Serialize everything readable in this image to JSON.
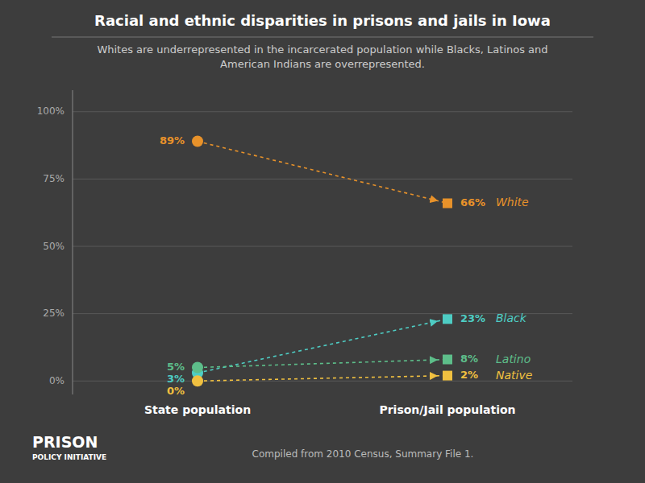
{
  "chart_data": {
    "type": "line",
    "title": "Racial and ethnic disparities in prisons and jails in Iowa",
    "subtitle": "Whites are underrepresented in the incarcerated population while Blacks, Latinos and\nAmerican Indians are overrepresented.",
    "categories": [
      "State population",
      "Prison/Jail population"
    ],
    "series": [
      {
        "name": "White",
        "color": "#e8922a",
        "values": [
          89,
          66
        ],
        "value_labels": [
          "89%",
          "66%"
        ]
      },
      {
        "name": "Black",
        "color": "#4ecdc4",
        "values": [
          3,
          23
        ],
        "value_labels": [
          "3%",
          "23%"
        ]
      },
      {
        "name": "Latino",
        "color": "#5dbe8a",
        "values": [
          5,
          8
        ],
        "value_labels": [
          "5%",
          "8%"
        ]
      },
      {
        "name": "Native",
        "color": "#f0c040",
        "values": [
          0,
          2
        ],
        "value_labels": [
          "0%",
          "2%"
        ]
      }
    ],
    "ylim": [
      -5,
      108
    ],
    "yticks": [
      {
        "value": 0,
        "label": "0%"
      },
      {
        "value": 25,
        "label": "25%"
      },
      {
        "value": 50,
        "label": "50%"
      },
      {
        "value": 75,
        "label": "75%"
      },
      {
        "value": 100,
        "label": "100%"
      }
    ],
    "grid": true,
    "data_labels": true,
    "line_style": "dashed",
    "annotations": [
      "PRISON",
      "POLICY INITIATIVE",
      "Compiled from 2010 Census, Summary File 1."
    ]
  }
}
